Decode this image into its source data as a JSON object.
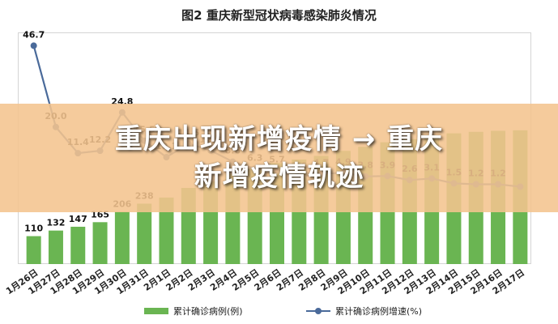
{
  "overlay": {
    "line1": "重庆出现新增疫情 → 重庆",
    "line2": "新增疫情轨迹"
  },
  "chart_data": {
    "type": "bar+line",
    "title": "图2   重庆新型冠状病毒感染肺炎情况",
    "categories": [
      "1月26日",
      "1月27日",
      "1月28日",
      "1月29日",
      "1月30日",
      "1月31日",
      "2月1日",
      "2月2日",
      "2月3日",
      "2月4日",
      "2月5日",
      "2月6日",
      "2月7日",
      "2月8日",
      "2月9日",
      "2月10日",
      "2月11日",
      "2月12日",
      "2月13日",
      "2月14日",
      "2月15日",
      "2月16日",
      "2月17日"
    ],
    "series": [
      {
        "name": "累计确诊病例(例)",
        "type": "bar",
        "color": "#6ab552",
        "values": [
          110,
          132,
          147,
          165,
          206,
          238,
          262,
          300,
          326,
          354,
          376,
          398,
          412,
          426,
          446,
          462,
          480,
          492,
          507,
          515,
          521,
          525,
          527
        ],
        "labels": [
          "110",
          "132",
          "147",
          "165",
          "206",
          "238",
          "",
          "",
          "",
          "",
          "",
          "",
          "",
          "",
          "",
          "",
          "",
          "",
          "",
          "",
          "",
          "",
          ""
        ]
      },
      {
        "name": "累计确诊病例增速(%)",
        "type": "line",
        "color": "#4a6a9a",
        "values": [
          46.7,
          20.0,
          11.4,
          12.2,
          24.8,
          15.5,
          10.1,
          14.5,
          12.3,
          8.6,
          6.3,
          5.7,
          3.6,
          4.7,
          4.9,
          3.8,
          3.9,
          2.6,
          3.1,
          1.5,
          1.2,
          1.2,
          0.4
        ],
        "labels": [
          "46.7",
          "20.0",
          "11.4",
          "12.2",
          "24.8",
          "15.5",
          "10.1",
          "14.5",
          "12.3",
          "8.6",
          "6.3",
          "5.7",
          "3.6",
          "4.7",
          "4.9",
          "3.8",
          "3.9",
          "2.6",
          "3.1",
          "1.5",
          "1.2",
          "1.2",
          ""
        ]
      }
    ],
    "bar_ylim": [
      0,
      900
    ],
    "line_ylim": [
      -25,
      50
    ],
    "grid": false,
    "legend_position": "bottom"
  }
}
